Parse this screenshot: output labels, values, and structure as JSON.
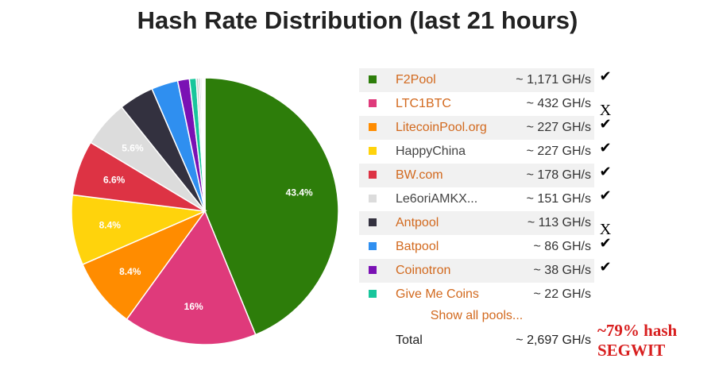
{
  "chart_data": {
    "type": "pie",
    "title": "Hash Rate Distribution (last 21 hours)",
    "unit": "GH/s",
    "slices": [
      {
        "name": "F2Pool",
        "value": 1171,
        "label": "43.4%",
        "color": "#2d7d0a",
        "link": true,
        "mark": "✔"
      },
      {
        "name": "LTC1BTC",
        "value": 432,
        "label": "16%",
        "color": "#df3a7b",
        "link": true,
        "mark": "X"
      },
      {
        "name": "LitecoinPool.org",
        "value": 227,
        "label": "8.4%",
        "color": "#ff8c00",
        "link": true,
        "mark": "✔"
      },
      {
        "name": "HappyChina",
        "value": 227,
        "label": "8.4%",
        "color": "#ffd30c",
        "link": false,
        "mark": "✔"
      },
      {
        "name": "BW.com",
        "value": 178,
        "label": "6.6%",
        "color": "#dd3344",
        "link": true,
        "mark": "✔"
      },
      {
        "name": "Le6oriAMKX...",
        "value": 151,
        "label": "5.6%",
        "color": "#dcdcdc",
        "link": false,
        "mark": "✔"
      },
      {
        "name": "Antpool",
        "value": 113,
        "label": "",
        "color": "#33313f",
        "link": true,
        "mark": "X"
      },
      {
        "name": "Batpool",
        "value": 86,
        "label": "",
        "color": "#2f8ff0",
        "link": true,
        "mark": "✔"
      },
      {
        "name": "Coinotron",
        "value": 38,
        "label": "",
        "color": "#7a11b4",
        "link": true,
        "mark": "✔"
      },
      {
        "name": "Give Me Coins",
        "value": 22,
        "label": "",
        "color": "#18c69c",
        "link": true,
        "mark": ""
      }
    ],
    "other_values": [
      8,
      6,
      5,
      4,
      3,
      2
    ]
  },
  "legend": {
    "rates": [
      "~ 1,171 GH/s",
      "~ 432 GH/s",
      "~ 227 GH/s",
      "~ 227 GH/s",
      "~ 178 GH/s",
      "~ 151 GH/s",
      "~ 113 GH/s",
      "~ 86 GH/s",
      "~ 38 GH/s",
      "~ 22 GH/s"
    ],
    "show_all": "Show all pools...",
    "total_label": "Total",
    "total_value": "~ 2,697 GH/s"
  },
  "annotation": {
    "line1": "~79% hash",
    "line2": "SEGWIT"
  }
}
